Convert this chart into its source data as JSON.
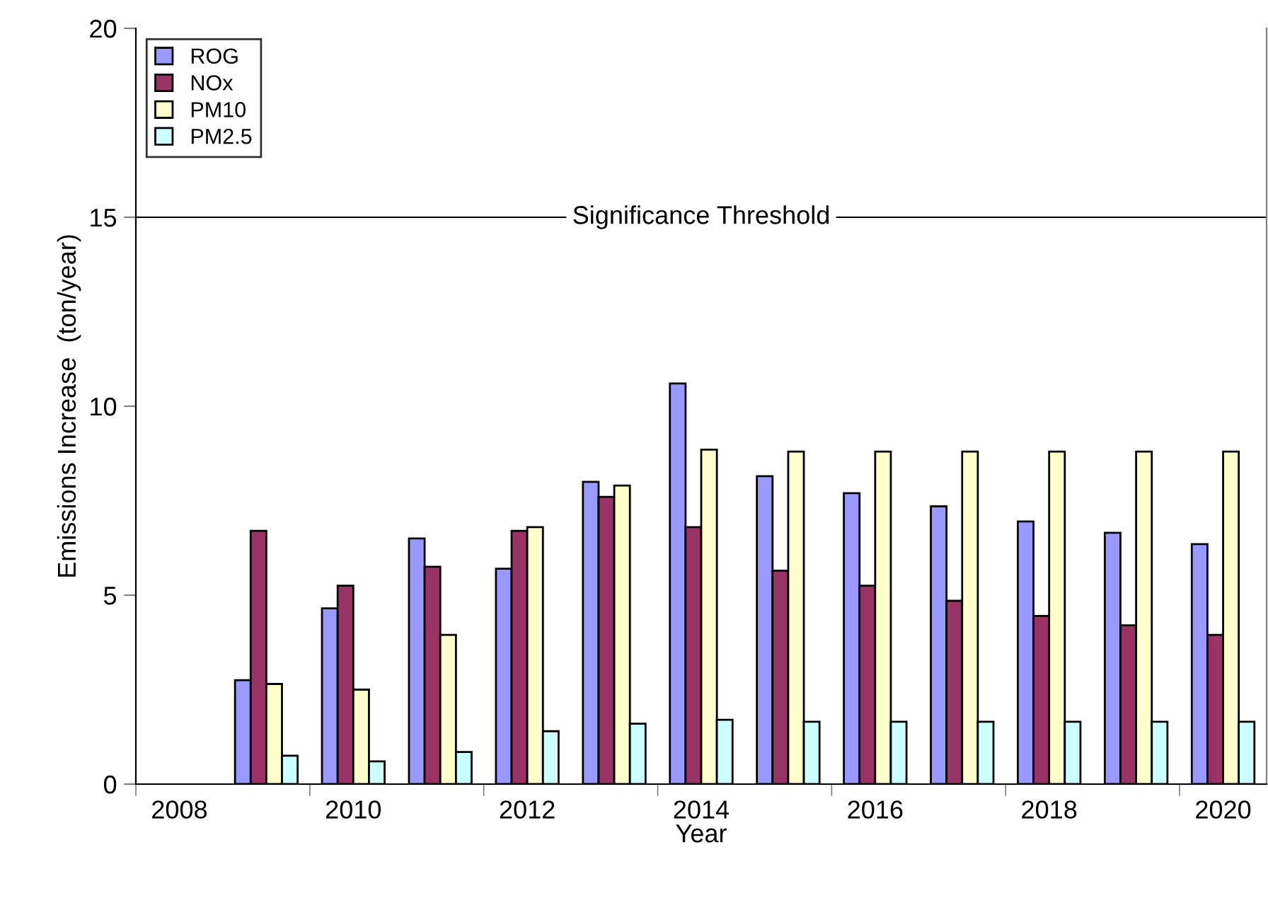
{
  "chart_data": {
    "type": "bar",
    "xlabel": "Year",
    "ylabel": "Emissions Increase  (ton/year)",
    "categories": [
      "2008",
      null,
      "2010",
      null,
      "2012",
      null,
      "2014",
      null,
      "2016",
      null,
      "2018",
      null,
      "2020"
    ],
    "series": [
      {
        "name": "ROG",
        "color": "#9999ff",
        "values": [
          null,
          2.75,
          4.65,
          6.5,
          5.7,
          8.0,
          10.6,
          8.15,
          7.7,
          7.35,
          6.95,
          6.65,
          6.35
        ]
      },
      {
        "name": "NOx",
        "color": "#993366",
        "values": [
          null,
          6.7,
          5.25,
          5.75,
          6.7,
          7.6,
          6.8,
          5.65,
          5.25,
          4.85,
          4.45,
          4.2,
          3.95
        ]
      },
      {
        "name": "PM10",
        "color": "#ffffcc",
        "values": [
          null,
          2.65,
          2.5,
          3.95,
          6.8,
          7.9,
          8.85,
          8.8,
          8.8,
          8.8,
          8.8,
          8.8,
          8.8
        ]
      },
      {
        "name": "PM2.5",
        "color": "#ccffff",
        "values": [
          null,
          0.75,
          0.6,
          0.85,
          1.4,
          1.6,
          1.7,
          1.65,
          1.65,
          1.65,
          1.65,
          1.65,
          1.65
        ]
      }
    ],
    "ylim": [
      0,
      20
    ],
    "yticks": [
      0,
      5,
      10,
      15,
      20
    ],
    "ref_lines": [
      {
        "axis": "y",
        "value": 15,
        "label": "Significance Threshold",
        "color": "#000000"
      }
    ],
    "legend": "top left",
    "grid": false
  }
}
